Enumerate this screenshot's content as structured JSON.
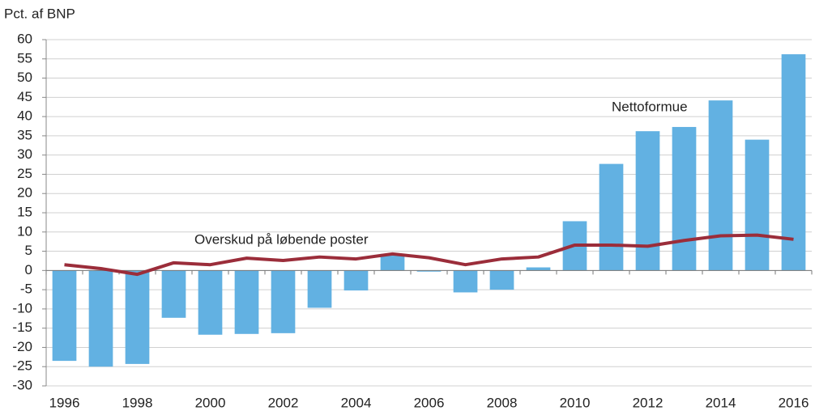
{
  "chart_data": {
    "type": "bar_line",
    "y_label": "Pct. af BNP",
    "categories": [
      "1996",
      null,
      "1998",
      null,
      "2000",
      null,
      "2002",
      null,
      "2004",
      null,
      "2006",
      null,
      "2008",
      null,
      "2010",
      null,
      "2012",
      null,
      "2014",
      null,
      "2016"
    ],
    "series": [
      {
        "name": "Nettoformue",
        "type": "bar",
        "color": "#62b1e2",
        "values": [
          -23.5,
          -25,
          -24.3,
          -12.3,
          -16.7,
          -16.5,
          -16.3,
          -9.7,
          -5.2,
          4.3,
          -0.3,
          -5.7,
          -5,
          0.8,
          12.8,
          27.7,
          36.2,
          37.3,
          44.2,
          34,
          56.2
        ]
      },
      {
        "name": "Overskud på løbende poster",
        "type": "line",
        "color": "#9b2d3a",
        "values": [
          1.5,
          0.5,
          -1,
          2,
          1.5,
          3.2,
          2.6,
          3.5,
          3,
          4.3,
          3.3,
          1.5,
          3,
          3.5,
          6.6,
          6.6,
          6.3,
          7.8,
          9,
          9.2,
          8.1
        ]
      }
    ],
    "ylim": [
      -30,
      60
    ],
    "yticks": [
      -30,
      -25,
      -20,
      -15,
      -10,
      -5,
      0,
      5,
      10,
      15,
      20,
      25,
      30,
      35,
      40,
      45,
      50,
      55,
      60
    ],
    "grid": true
  }
}
